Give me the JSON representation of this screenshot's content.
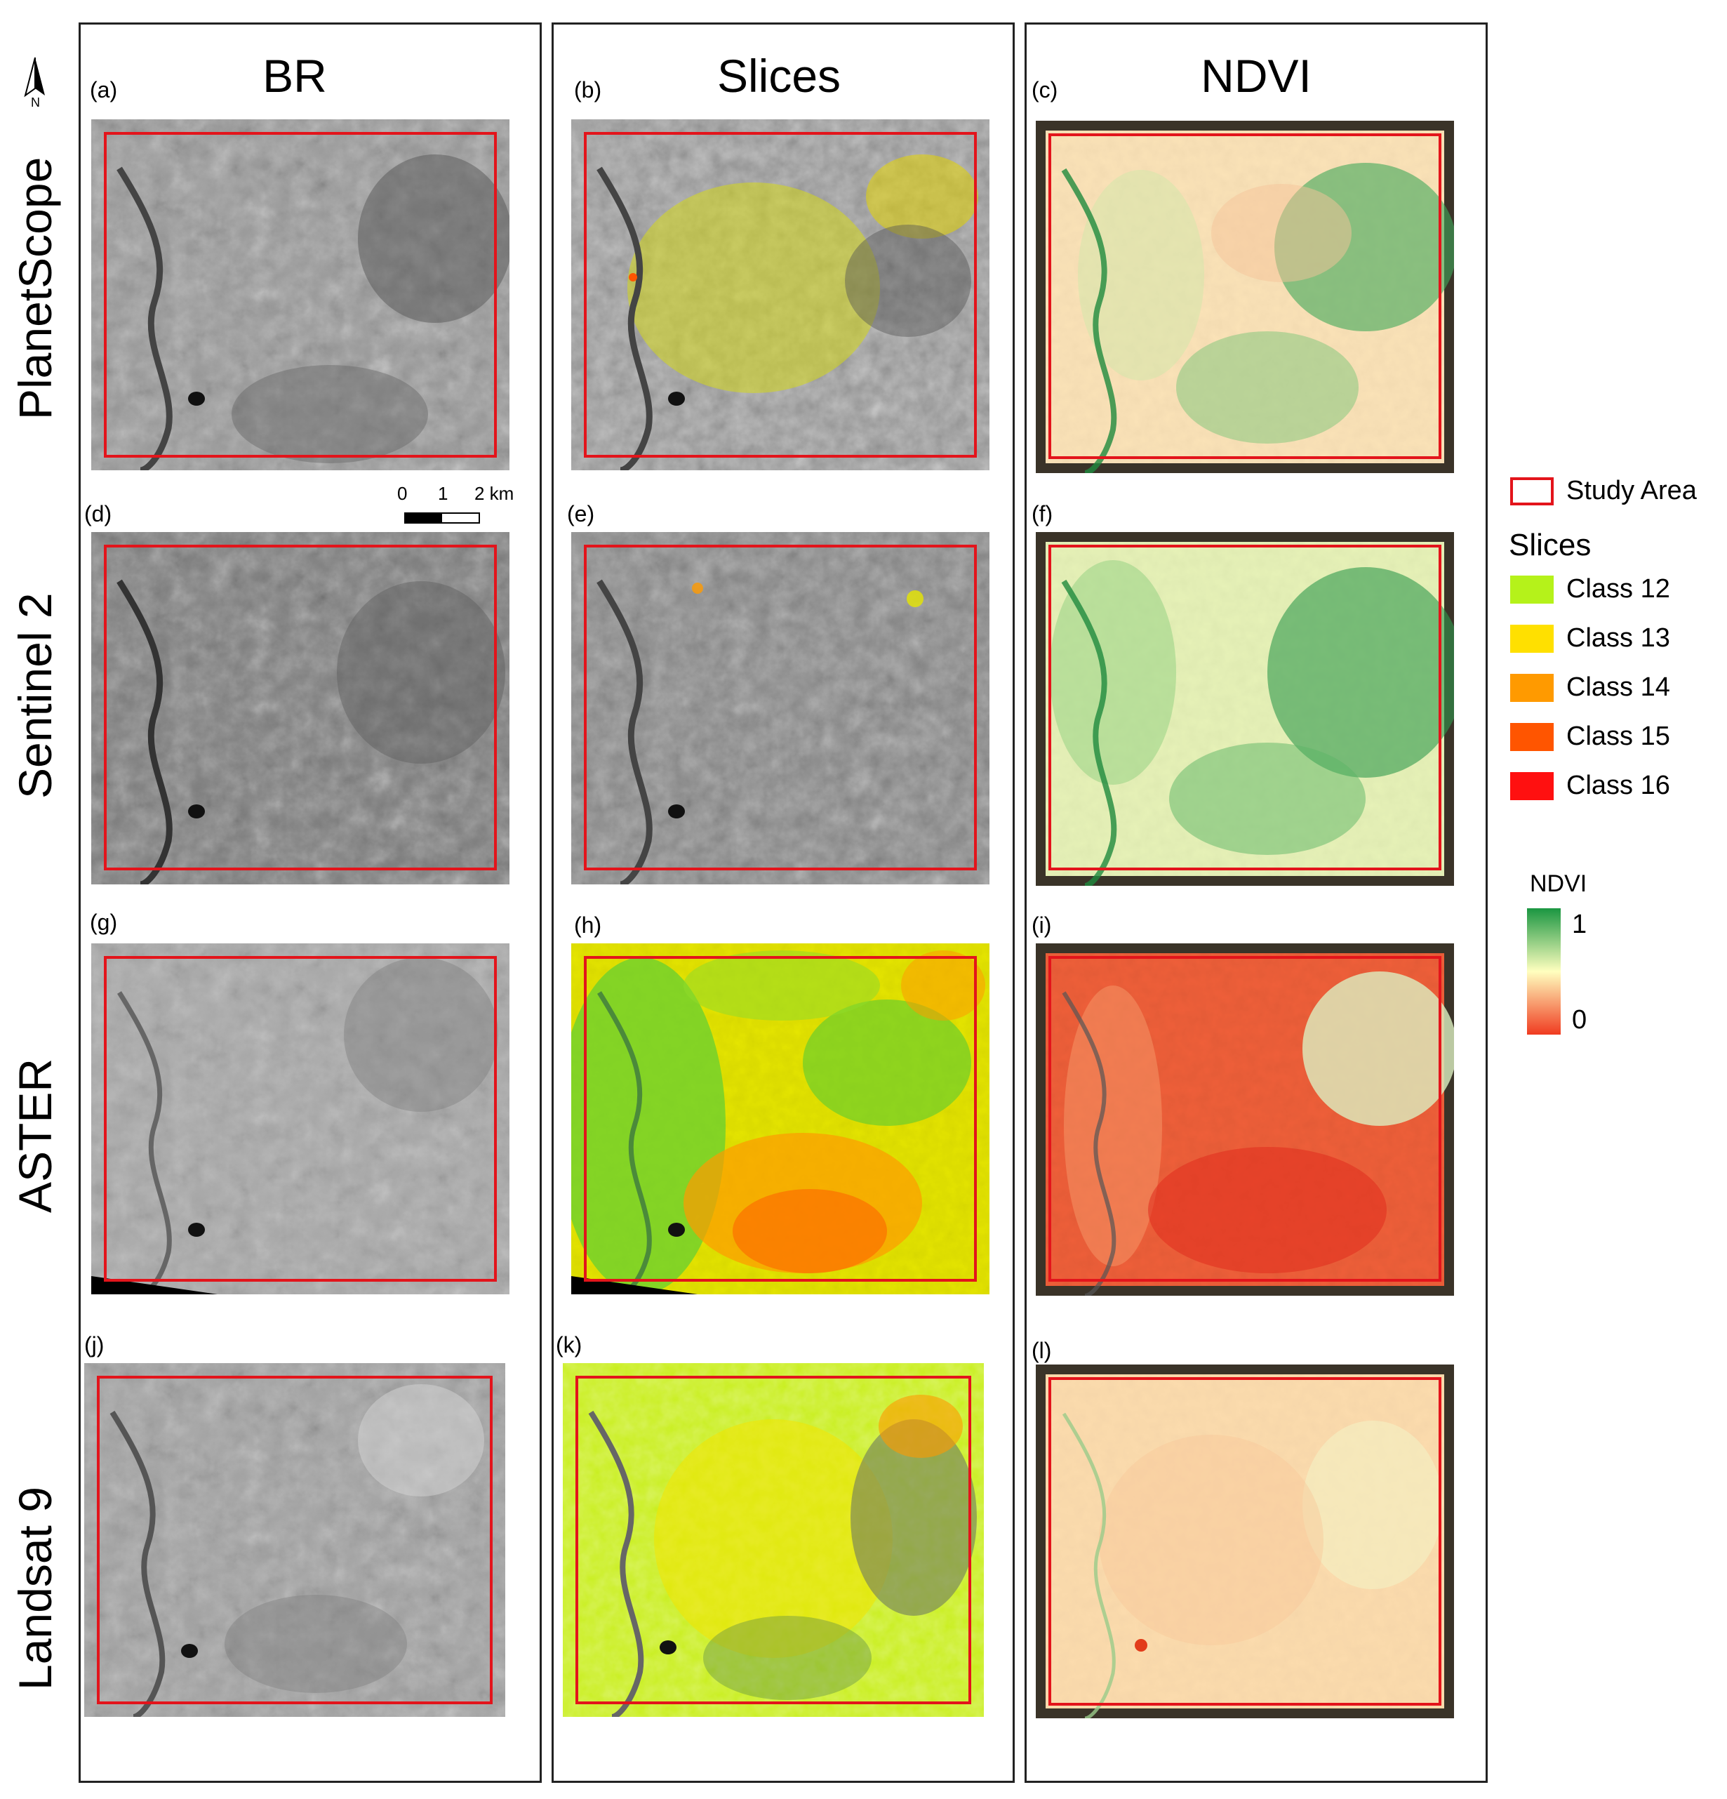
{
  "north_arrow": {
    "label": "N"
  },
  "columns": [
    {
      "title": "BR"
    },
    {
      "title": "Slices"
    },
    {
      "title": "NDVI"
    }
  ],
  "rows": [
    {
      "label": "PlanetScope"
    },
    {
      "label": "Sentinel 2"
    },
    {
      "label": "ASTER"
    },
    {
      "label": "Landsat 9"
    }
  ],
  "panels": {
    "a": "(a)",
    "b": "(b)",
    "c": "(c)",
    "d": "(d)",
    "e": "(e)",
    "f": "(f)",
    "g": "(g)",
    "h": "(h)",
    "i": "(i)",
    "j": "(j)",
    "k": "(k)",
    "l": "(l)"
  },
  "scale_bar": {
    "ticks": [
      "0",
      "1",
      "2 km"
    ]
  },
  "legend": {
    "study_area": "Study Area",
    "slices_title": "Slices",
    "classes": [
      {
        "label": "Class 12",
        "color": "#b5f21a"
      },
      {
        "label": "Class 13",
        "color": "#ffe000"
      },
      {
        "label": "Class 14",
        "color": "#ff9a00"
      },
      {
        "label": "Class 15",
        "color": "#ff5500"
      },
      {
        "label": "Class 16",
        "color": "#ff1010"
      }
    ],
    "ndvi_title": "NDVI",
    "ndvi_max": "1",
    "ndvi_min": "0",
    "ndvi_colors": [
      "#1a9641",
      "#ffffbf",
      "#f03b20"
    ]
  },
  "study_area_color": "#e3141b"
}
